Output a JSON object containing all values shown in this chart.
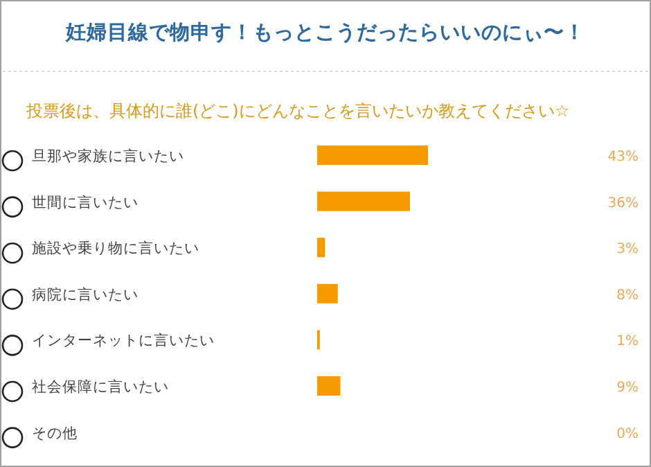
{
  "chart_data": {
    "type": "bar",
    "orientation": "horizontal",
    "title": "妊婦目線で物申す！もっとこうだったらいいのにぃ〜！",
    "subtitle": "投票後は、具体的に誰(どこ)にどんなことを言いたいか教えてください☆",
    "categories": [
      "旦那や家族に言いたい",
      "世間に言いたい",
      "施設や乗り物に言いたい",
      "病院に言いたい",
      "インターネットに言いたい",
      "社会保障に言いたい",
      "その他"
    ],
    "values": [
      43,
      36,
      3,
      8,
      1,
      9,
      0
    ],
    "value_labels": [
      "43%",
      "36%",
      "3%",
      "8%",
      "1%",
      "9%",
      "0%"
    ],
    "color": "#f59a00"
  }
}
